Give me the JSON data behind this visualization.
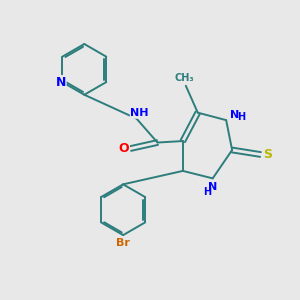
{
  "bg_color": "#e8e8e8",
  "bond_color": "#2d7d7d",
  "N_color": "#0000ff",
  "O_color": "#ff0000",
  "S_color": "#b8b800",
  "Br_color": "#cc6600",
  "bond_width": 1.4,
  "font_size": 9,
  "figsize": [
    3.0,
    3.0
  ],
  "dpi": 100,
  "xlim": [
    0,
    10
  ],
  "ylim": [
    0,
    10
  ]
}
